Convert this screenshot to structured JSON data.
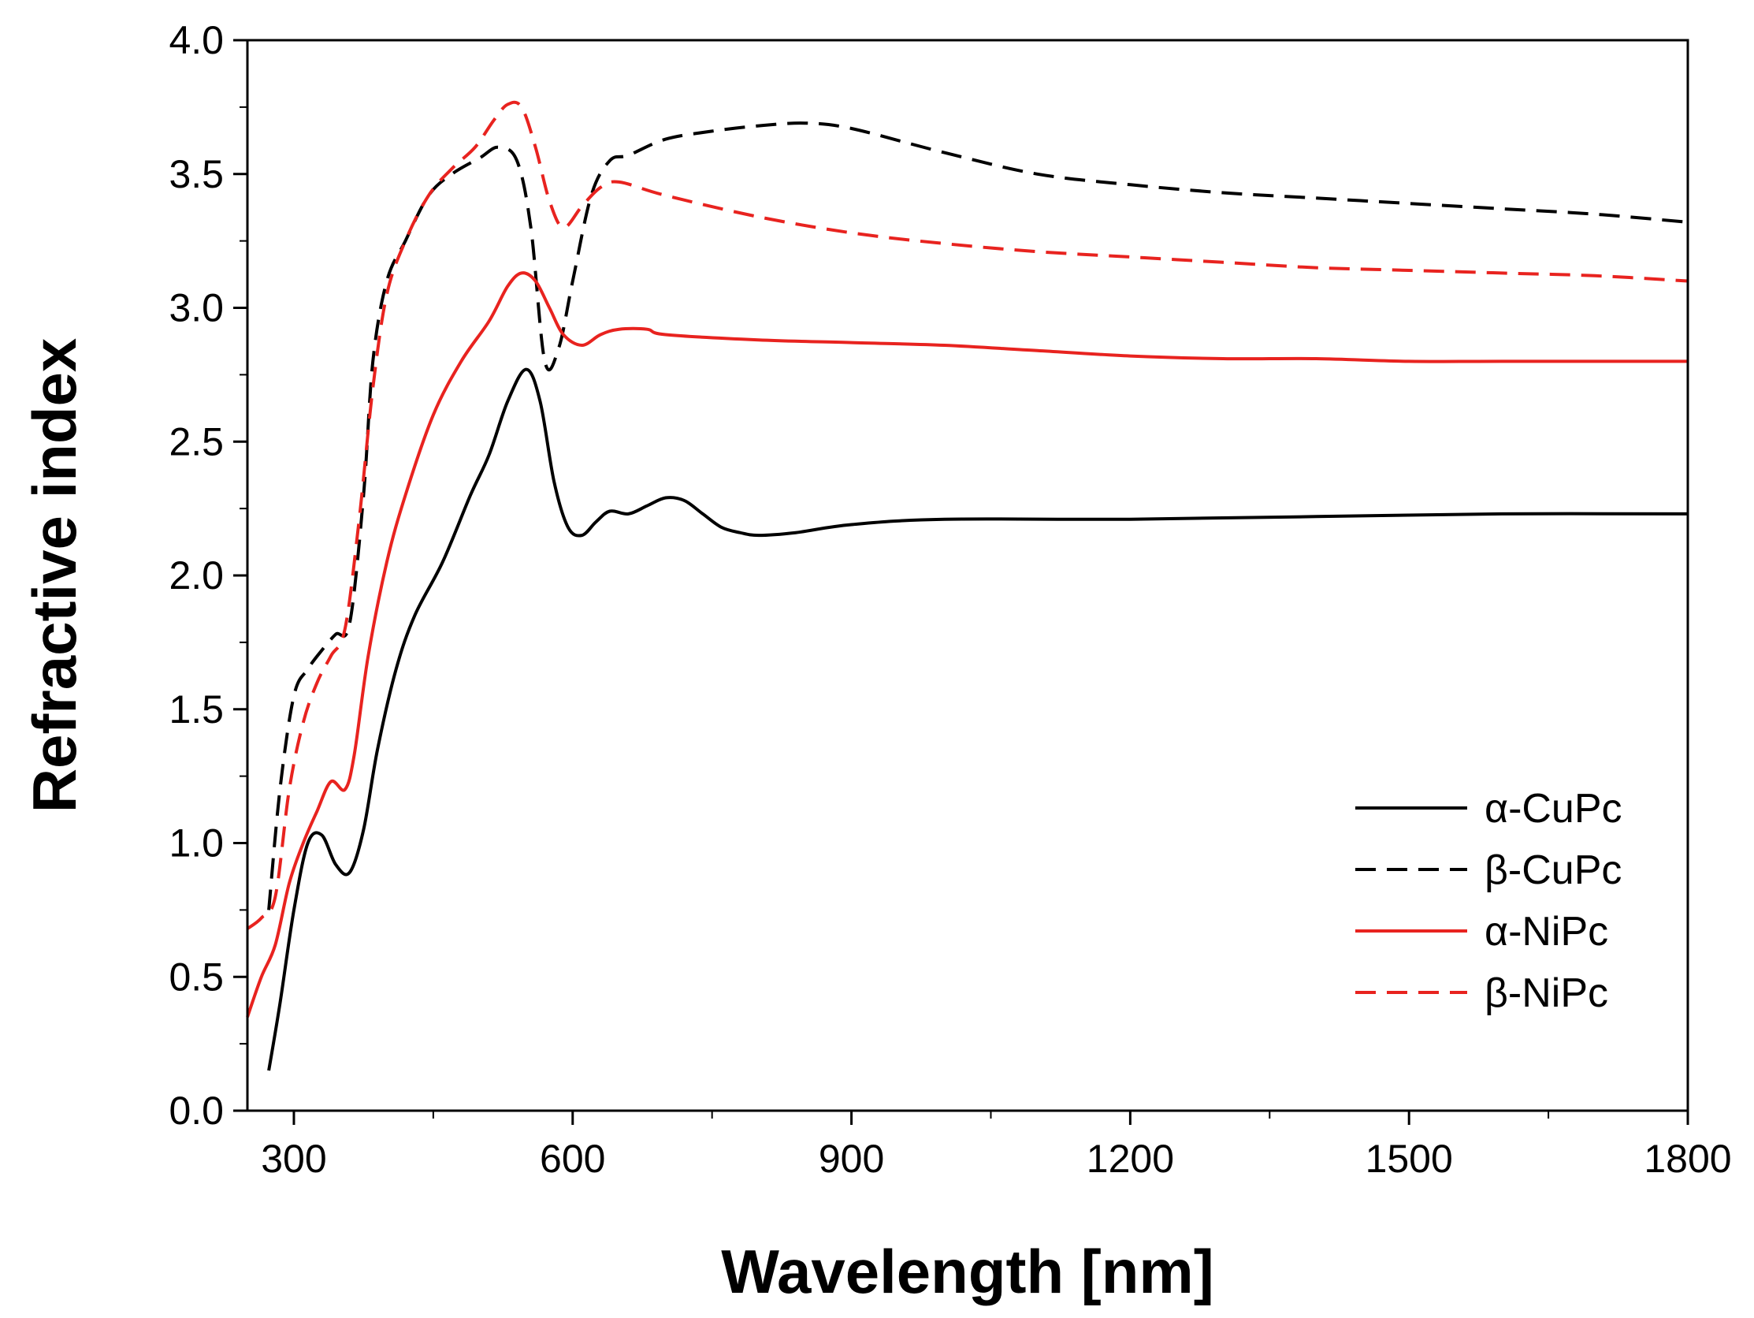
{
  "chart_data": {
    "type": "line",
    "title": "",
    "xlabel": "Wavelength [nm]",
    "ylabel": "Refractive index",
    "xlim": [
      250,
      1800
    ],
    "ylim": [
      0.0,
      4.0
    ],
    "x_ticks": [
      300,
      600,
      900,
      1200,
      1500,
      1800
    ],
    "x_tick_labels": [
      "300",
      "600",
      "900",
      "1200",
      "1500",
      "1800"
    ],
    "y_ticks": [
      0.0,
      0.5,
      1.0,
      1.5,
      2.0,
      2.5,
      3.0,
      3.5,
      4.0
    ],
    "y_tick_labels": [
      "0.0",
      "0.5",
      "1.0",
      "1.5",
      "2.0",
      "2.5",
      "3.0",
      "3.5",
      "4.0"
    ],
    "grid": false,
    "legend_position": "bottom-right",
    "series": [
      {
        "name": "α-CuPc",
        "color": "#000000",
        "dash": "solid",
        "x": [
          273,
          285,
          300,
          315,
          330,
          345,
          360,
          375,
          390,
          410,
          430,
          460,
          490,
          510,
          530,
          550,
          565,
          580,
          595,
          610,
          625,
          640,
          660,
          680,
          700,
          720,
          740,
          760,
          780,
          800,
          840,
          900,
          1000,
          1200,
          1400,
          1600,
          1800
        ],
        "y": [
          0.15,
          0.4,
          0.75,
          1.0,
          1.03,
          0.92,
          0.89,
          1.05,
          1.35,
          1.65,
          1.85,
          2.05,
          2.3,
          2.45,
          2.65,
          2.77,
          2.65,
          2.35,
          2.18,
          2.15,
          2.2,
          2.24,
          2.23,
          2.26,
          2.29,
          2.28,
          2.23,
          2.18,
          2.16,
          2.15,
          2.16,
          2.19,
          2.21,
          2.21,
          2.22,
          2.23,
          2.23
        ]
      },
      {
        "name": "β-CuPc",
        "color": "#000000",
        "dash": "dashed",
        "x": [
          273,
          285,
          300,
          315,
          330,
          345,
          360,
          375,
          385,
          400,
          420,
          445,
          470,
          500,
          520,
          540,
          555,
          570,
          585,
          600,
          620,
          640,
          660,
          700,
          750,
          800,
          850,
          900,
          1000,
          1100,
          1200,
          1300,
          1400,
          1500,
          1600,
          1700,
          1800
        ],
        "y": [
          0.75,
          1.2,
          1.55,
          1.65,
          1.72,
          1.78,
          1.82,
          2.3,
          2.8,
          3.1,
          3.25,
          3.42,
          3.5,
          3.56,
          3.6,
          3.55,
          3.3,
          2.8,
          2.85,
          3.1,
          3.42,
          3.55,
          3.57,
          3.63,
          3.66,
          3.68,
          3.69,
          3.67,
          3.58,
          3.5,
          3.46,
          3.43,
          3.41,
          3.39,
          3.37,
          3.35,
          3.32
        ]
      },
      {
        "name": "α-NiPc",
        "color": "#e8231f",
        "dash": "solid",
        "x": [
          250,
          265,
          280,
          295,
          310,
          325,
          340,
          355,
          365,
          380,
          400,
          420,
          450,
          480,
          510,
          530,
          545,
          560,
          575,
          590,
          610,
          630,
          650,
          680,
          700,
          800,
          900,
          1000,
          1100,
          1200,
          1300,
          1400,
          1500,
          1600,
          1800
        ],
        "y": [
          0.35,
          0.5,
          0.62,
          0.85,
          1.0,
          1.12,
          1.23,
          1.2,
          1.33,
          1.7,
          2.05,
          2.3,
          2.6,
          2.8,
          2.95,
          3.08,
          3.13,
          3.1,
          3.0,
          2.9,
          2.86,
          2.9,
          2.92,
          2.92,
          2.9,
          2.88,
          2.87,
          2.86,
          2.84,
          2.82,
          2.81,
          2.81,
          2.8,
          2.8,
          2.8
        ]
      },
      {
        "name": "β-NiPc",
        "color": "#e8231f",
        "dash": "dashed",
        "x": [
          250,
          265,
          280,
          295,
          310,
          325,
          340,
          355,
          370,
          385,
          400,
          420,
          445,
          470,
          495,
          515,
          530,
          545,
          560,
          575,
          590,
          610,
          630,
          650,
          700,
          800,
          900,
          1000,
          1100,
          1200,
          1300,
          1400,
          1500,
          1600,
          1700,
          1800
        ],
        "y": [
          0.68,
          0.72,
          0.8,
          1.2,
          1.45,
          1.6,
          1.7,
          1.8,
          2.2,
          2.7,
          3.05,
          3.25,
          3.42,
          3.52,
          3.6,
          3.7,
          3.76,
          3.75,
          3.6,
          3.4,
          3.3,
          3.38,
          3.45,
          3.47,
          3.42,
          3.34,
          3.28,
          3.24,
          3.21,
          3.19,
          3.17,
          3.15,
          3.14,
          3.13,
          3.12,
          3.1
        ]
      }
    ]
  }
}
